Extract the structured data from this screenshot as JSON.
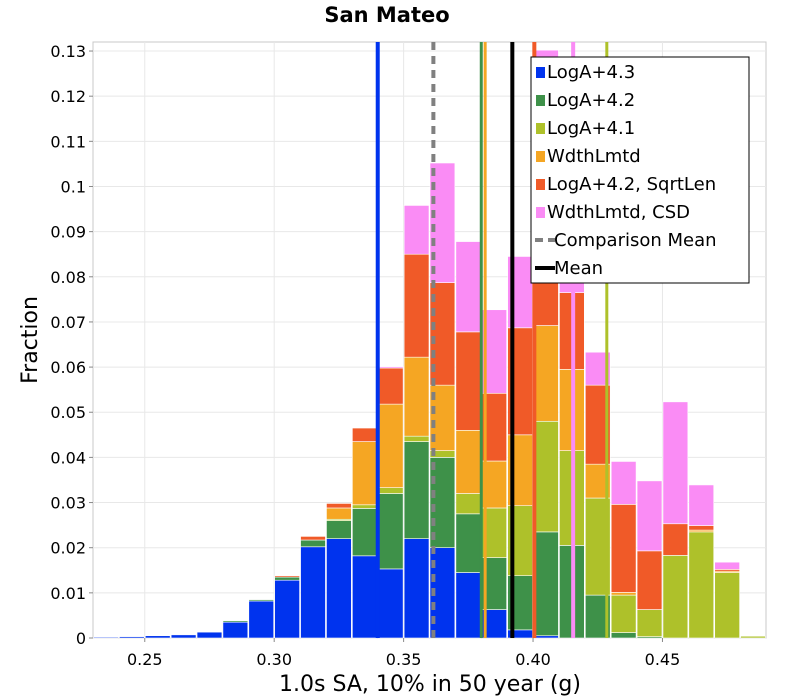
{
  "chart_data": {
    "type": "bar",
    "stacked": true,
    "title": "San Mateo",
    "xlabel": "1.0s SA, 10% in 50 year (g)",
    "ylabel": "Fraction",
    "xlim": [
      0.23,
      0.49
    ],
    "ylim": [
      0,
      0.132
    ],
    "xticks": [
      0.25,
      0.3,
      0.35,
      0.4,
      0.45
    ],
    "xtick_labels": [
      "0.25",
      "0.30",
      "0.35",
      "0.40",
      "0.45"
    ],
    "yticks": [
      0,
      0.01,
      0.02,
      0.03,
      0.04,
      0.05,
      0.06,
      0.07,
      0.08,
      0.09,
      0.1,
      0.11,
      0.12,
      0.13
    ],
    "ytick_labels": [
      "0",
      "0.01",
      "0.02",
      "0.03",
      "0.04",
      "0.05",
      "0.06",
      "0.07",
      "0.08",
      "0.09",
      "0.1",
      "0.11",
      "0.12",
      "0.13"
    ],
    "grid": true,
    "legend_position": "top-right",
    "bin_width": 0.01,
    "bin_centers": [
      0.235,
      0.245,
      0.255,
      0.265,
      0.275,
      0.285,
      0.295,
      0.305,
      0.315,
      0.325,
      0.335,
      0.345,
      0.355,
      0.365,
      0.375,
      0.385,
      0.395,
      0.405,
      0.415,
      0.425,
      0.435,
      0.445,
      0.455,
      0.465,
      0.475,
      0.485
    ],
    "series": [
      {
        "name": "LogA+4.3",
        "color": "#0033ee",
        "values": [
          0.0002,
          0.0003,
          0.0005,
          0.0007,
          0.0013,
          0.0035,
          0.0082,
          0.0128,
          0.0202,
          0.022,
          0.0182,
          0.0153,
          0.022,
          0.02,
          0.0145,
          0.0063,
          0.0018,
          0.0005,
          0,
          0,
          0,
          0,
          0,
          0,
          0,
          0
        ]
      },
      {
        "name": "LogA+4.2",
        "color": "#3e9149",
        "values": [
          0,
          0,
          0,
          0,
          0,
          0.0003,
          0.0003,
          0.0007,
          0.0015,
          0.004,
          0.0105,
          0.0167,
          0.0215,
          0.02,
          0.013,
          0.0115,
          0.012,
          0.023,
          0.0205,
          0.0095,
          0.0012,
          0.0003,
          0,
          0,
          0,
          0
        ]
      },
      {
        "name": "LogA+4.1",
        "color": "#aec12a",
        "values": [
          0,
          0,
          0,
          0,
          0,
          0,
          0,
          0,
          0,
          0.0003,
          0.0008,
          0.0013,
          0.0012,
          0.0015,
          0.0045,
          0.011,
          0.0155,
          0.0245,
          0.021,
          0.0215,
          0.0083,
          0.006,
          0.0183,
          0.0235,
          0.0145,
          0.0004
        ]
      },
      {
        "name": "WdthLmtd",
        "color": "#f5a623",
        "values": [
          0,
          0,
          0,
          0,
          0,
          0,
          0,
          0,
          0,
          0.0025,
          0.014,
          0.0185,
          0.0175,
          0.0145,
          0.014,
          0.0104,
          0.0157,
          0.0212,
          0.018,
          0.0075,
          0.0006,
          0,
          0,
          0.0004,
          0.0003,
          0
        ]
      },
      {
        "name": "LogA+4.2, SqrtLen",
        "color": "#f05a28",
        "values": [
          0,
          0,
          0,
          0,
          0,
          0,
          0,
          0.0003,
          0.0008,
          0.001,
          0.003,
          0.008,
          0.0228,
          0.0227,
          0.0218,
          0.015,
          0.0237,
          0.033,
          0.017,
          0.0175,
          0.0195,
          0.013,
          0.007,
          0.001,
          0.0004,
          0
        ]
      },
      {
        "name": "WdthLmtd, CSD",
        "color": "#fa8cf5",
        "values": [
          0,
          0,
          0,
          0,
          0,
          0,
          0,
          0,
          0,
          0,
          0,
          0.0003,
          0.0108,
          0.0265,
          0.02,
          0.0185,
          0.0158,
          0.028,
          0.016,
          0.0073,
          0.0095,
          0.0155,
          0.027,
          0.009,
          0.0016,
          0
        ]
      }
    ],
    "vertical_lines": [
      {
        "x": 0.34,
        "color": "#0033ee",
        "style": "solid",
        "width": 4
      },
      {
        "x": 0.38,
        "color": "#3e9149",
        "style": "solid",
        "width": 3
      },
      {
        "x": 0.3815,
        "color": "#f5a623",
        "style": "solid",
        "width": 3
      },
      {
        "x": 0.4285,
        "color": "#aec12a",
        "style": "solid",
        "width": 3
      },
      {
        "x": 0.4005,
        "color": "#f05a28",
        "style": "solid",
        "width": 4
      },
      {
        "x": 0.4155,
        "color": "#fa8cf5",
        "style": "solid",
        "width": 4
      },
      {
        "x": 0.3615,
        "color": "#808080",
        "style": "dashed",
        "width": 4,
        "legend": "Comparison Mean"
      },
      {
        "x": 0.392,
        "color": "#000000",
        "style": "solid",
        "width": 4,
        "legend": "Mean"
      }
    ],
    "legend": [
      {
        "label": "LogA+4.3",
        "color": "#0033ee",
        "kind": "patch"
      },
      {
        "label": "LogA+4.2",
        "color": "#3e9149",
        "kind": "patch"
      },
      {
        "label": "LogA+4.1",
        "color": "#aec12a",
        "kind": "patch"
      },
      {
        "label": "WdthLmtd",
        "color": "#f5a623",
        "kind": "patch"
      },
      {
        "label": "LogA+4.2, SqrtLen",
        "color": "#f05a28",
        "kind": "patch"
      },
      {
        "label": "WdthLmtd, CSD",
        "color": "#fa8cf5",
        "kind": "patch"
      },
      {
        "label": "Comparison Mean",
        "color": "#808080",
        "kind": "dashed-line"
      },
      {
        "label": "Mean",
        "color": "#000000",
        "kind": "line"
      }
    ]
  }
}
